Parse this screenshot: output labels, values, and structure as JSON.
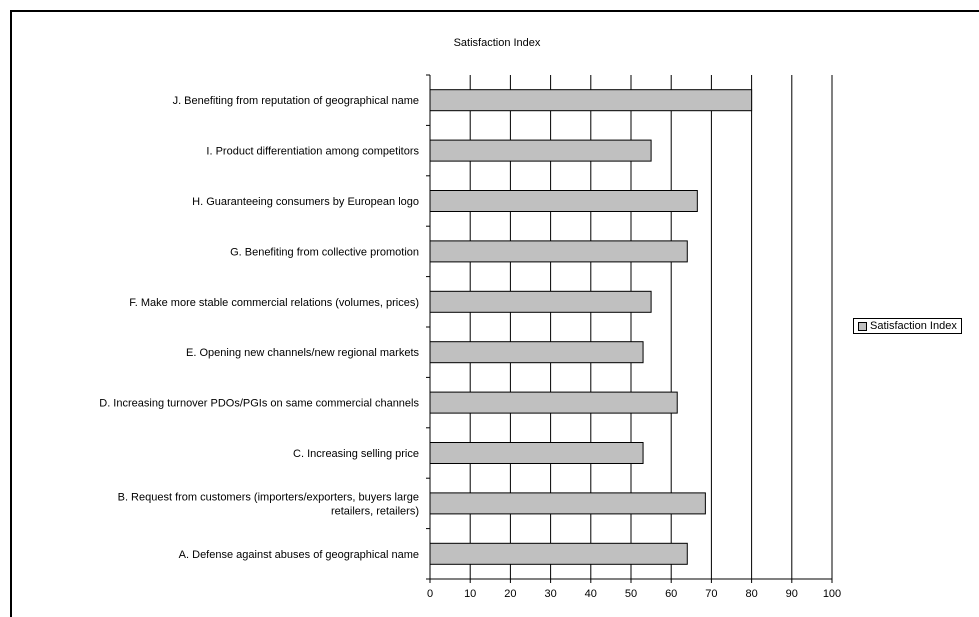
{
  "chart_data": {
    "type": "bar",
    "orientation": "horizontal",
    "title": "Satisfaction Index",
    "xlabel": "",
    "ylabel": "",
    "xlim": [
      0,
      100
    ],
    "x_ticks": [
      0,
      10,
      20,
      30,
      40,
      50,
      60,
      70,
      80,
      90,
      100
    ],
    "grid": "vertical major gridlines",
    "legend": {
      "position": "right",
      "entries": [
        "Satisfaction Index"
      ]
    },
    "bar_color": "#c0c0c0",
    "categories": [
      [
        "J. Benefiting from reputation of geographical name"
      ],
      [
        "I. Product differentiation among competitors"
      ],
      [
        "H. Guaranteeing consumers by European logo"
      ],
      [
        "G. Benefiting from collective promotion"
      ],
      [
        "F. Make more stable commercial relations (volumes, prices)"
      ],
      [
        "E. Opening new channels/new regional markets"
      ],
      [
        "D. Increasing turnover PDOs/PGIs on same commercial channels"
      ],
      [
        "C. Increasing selling price"
      ],
      [
        "B. Request from customers (importers/exporters, buyers large",
        "retailers, retailers)"
      ],
      [
        "A. Defense against abuses of geographical name"
      ]
    ],
    "series": [
      {
        "name": "Satisfaction Index",
        "values": [
          80,
          55,
          66.5,
          64,
          55,
          53,
          61.5,
          53,
          68.5,
          64
        ]
      }
    ]
  }
}
